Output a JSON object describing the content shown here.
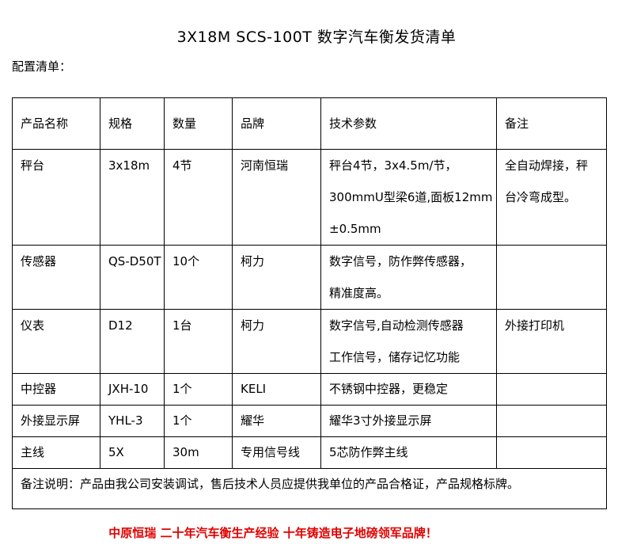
{
  "title": "3X18M SCS-100T 数字汽车衡发货清单",
  "subtitle": "配置清单：",
  "table": {
    "headers": [
      "产品名称",
      "规格",
      "数量",
      "品牌",
      "技术参数",
      "备注"
    ],
    "rows": [
      {
        "name": "秤台",
        "spec": "3x18m",
        "qty": "4节",
        "brand": "河南恒瑞",
        "params": [
          "秤台4节，3x4.5m/节，",
          "300mmU型梁6道,面板12mm",
          "±0.5mm"
        ],
        "remark": [
          "全自动焊接，秤",
          "台冷弯成型。"
        ]
      },
      {
        "name": "传感器",
        "spec": "QS-D50T",
        "qty": "10个",
        "brand": "柯力",
        "params": [
          "数字信号，防作弊传感器，",
          "精准度高。"
        ],
        "remark": []
      },
      {
        "name": "仪表",
        "spec": "D12",
        "qty": "1台",
        "brand": "柯力",
        "params": [
          "数字信号,自动检测传感器",
          "工作信号，储存记忆功能"
        ],
        "remark": [
          "外接打印机"
        ]
      },
      {
        "name": "中控器",
        "spec": "JXH-10",
        "qty": "1个",
        "brand": "KELI",
        "params": [
          "不锈钢中控器，更稳定"
        ],
        "remark": []
      },
      {
        "name": "外接显示屏",
        "spec": "YHL-3",
        "qty": "1个",
        "brand": "耀华",
        "params": [
          "耀华3寸外接显示屏"
        ],
        "remark": []
      },
      {
        "name": "主线",
        "spec": "5X",
        "qty": "30m",
        "brand": "专用信号线",
        "params": [
          "5芯防作弊主线"
        ],
        "remark": []
      }
    ],
    "note": "备注说明：产品由我公司安装调试，售后技术人员应提供我单位的产品合格证，产品规格标牌。"
  },
  "footer": "中原恒瑞 二十年汽车衡生产经验 十年铸造电子地磅领军品牌！",
  "colors": {
    "footer": "#e00000",
    "border": "#000000"
  }
}
